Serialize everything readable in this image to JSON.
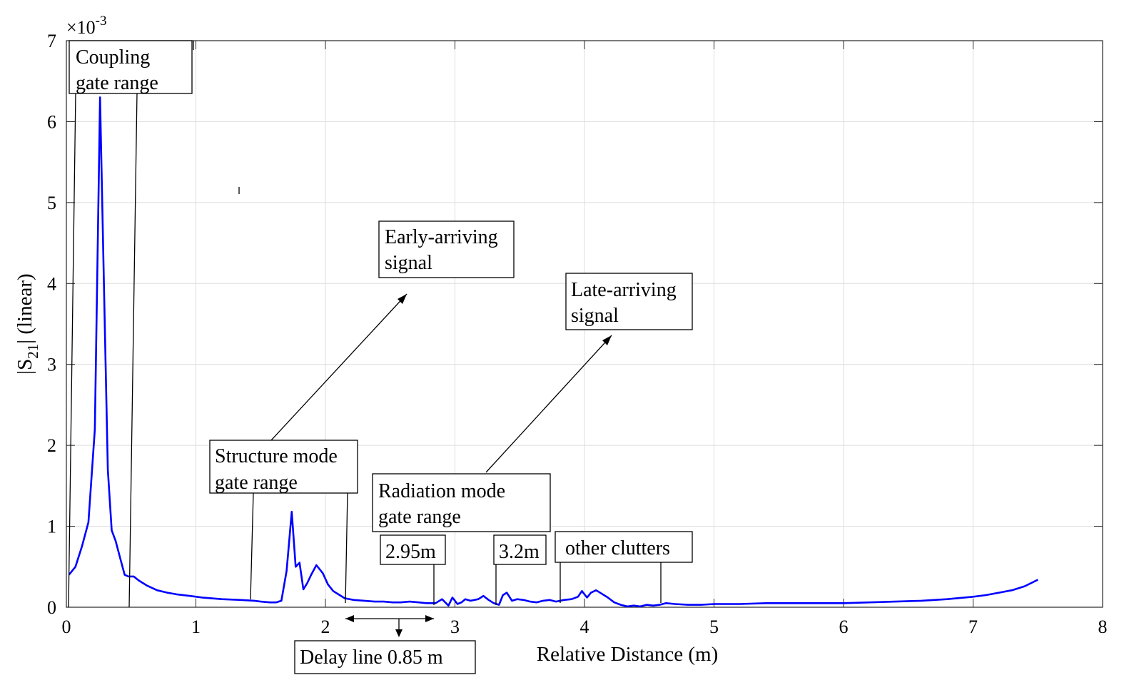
{
  "chart_data": {
    "type": "line",
    "xlabel": "Relative Distance (m)",
    "ylabel": "|S21| (linear)",
    "ylabel_main": "|S",
    "ylabel_sub": "21",
    "ylabel_rest": "| (linear)",
    "y_exponent_prefix": "×10",
    "y_exponent_power": "-3",
    "xlim": [
      0,
      8
    ],
    "ylim": [
      0,
      7
    ],
    "y_scale": 0.001,
    "grid": true,
    "line_color": "#0000ff",
    "xticks": [
      "0",
      "1",
      "2",
      "3",
      "4",
      "5",
      "6",
      "7",
      "8"
    ],
    "yticks": [
      "0",
      "1",
      "2",
      "3",
      "4",
      "5",
      "6",
      "7"
    ],
    "series": [
      {
        "x": [
          0.02,
          0.07,
          0.12,
          0.17,
          0.22,
          0.26,
          0.29,
          0.32,
          0.35,
          0.38,
          0.42,
          0.45,
          0.48,
          0.52,
          0.56,
          0.62,
          0.7,
          0.78,
          0.85,
          0.95,
          1.05,
          1.2,
          1.35,
          1.45,
          1.5,
          1.57,
          1.62,
          1.66,
          1.7,
          1.74,
          1.77,
          1.8,
          1.83,
          1.86,
          1.89,
          1.93,
          1.98,
          2.02,
          2.06,
          2.1,
          2.15,
          2.22,
          2.3,
          2.38,
          2.45,
          2.52,
          2.58,
          2.65,
          2.72,
          2.78,
          2.85,
          2.9,
          2.95,
          2.98,
          3.02,
          3.05,
          3.08,
          3.12,
          3.18,
          3.22,
          3.26,
          3.3,
          3.34,
          3.37,
          3.4,
          3.44,
          3.48,
          3.53,
          3.58,
          3.63,
          3.68,
          3.73,
          3.78,
          3.84,
          3.9,
          3.95,
          3.98,
          4.02,
          4.05,
          4.09,
          4.13,
          4.18,
          4.23,
          4.28,
          4.33,
          4.38,
          4.43,
          4.48,
          4.53,
          4.58,
          4.63,
          4.7,
          4.8,
          4.9,
          5.0,
          5.2,
          5.4,
          5.6,
          5.8,
          6.0,
          6.2,
          6.4,
          6.6,
          6.8,
          7.0,
          7.1,
          7.2,
          7.3,
          7.4,
          7.5
        ],
        "y": [
          0.4,
          0.5,
          0.75,
          1.05,
          2.2,
          6.3,
          4.0,
          1.7,
          0.95,
          0.82,
          0.58,
          0.4,
          0.38,
          0.38,
          0.33,
          0.27,
          0.21,
          0.18,
          0.16,
          0.14,
          0.12,
          0.1,
          0.09,
          0.08,
          0.07,
          0.06,
          0.06,
          0.08,
          0.45,
          1.18,
          0.5,
          0.55,
          0.22,
          0.3,
          0.4,
          0.52,
          0.42,
          0.28,
          0.2,
          0.16,
          0.11,
          0.09,
          0.08,
          0.07,
          0.07,
          0.06,
          0.06,
          0.07,
          0.06,
          0.05,
          0.05,
          0.1,
          0.02,
          0.12,
          0.04,
          0.06,
          0.1,
          0.08,
          0.1,
          0.14,
          0.09,
          0.05,
          0.03,
          0.15,
          0.18,
          0.08,
          0.1,
          0.09,
          0.07,
          0.06,
          0.08,
          0.09,
          0.07,
          0.09,
          0.1,
          0.13,
          0.2,
          0.12,
          0.18,
          0.21,
          0.17,
          0.12,
          0.06,
          0.03,
          0.01,
          0.02,
          0.01,
          0.03,
          0.02,
          0.03,
          0.05,
          0.04,
          0.03,
          0.03,
          0.04,
          0.04,
          0.05,
          0.05,
          0.05,
          0.05,
          0.06,
          0.07,
          0.08,
          0.1,
          0.13,
          0.15,
          0.18,
          0.21,
          0.26,
          0.34
        ]
      }
    ],
    "annotations": {
      "coupling": [
        "Coupling",
        "gate range"
      ],
      "early": [
        "Early-arriving",
        "signal"
      ],
      "late": [
        "Late-arriving",
        "signal"
      ],
      "structure": [
        "Structure mode",
        "gate range"
      ],
      "radiation": [
        "Radiation mode",
        "gate range"
      ],
      "d295": "2.95m",
      "d32": "3.2m",
      "clutters": "other clutters",
      "delay": "Delay line 0.85 m"
    }
  }
}
